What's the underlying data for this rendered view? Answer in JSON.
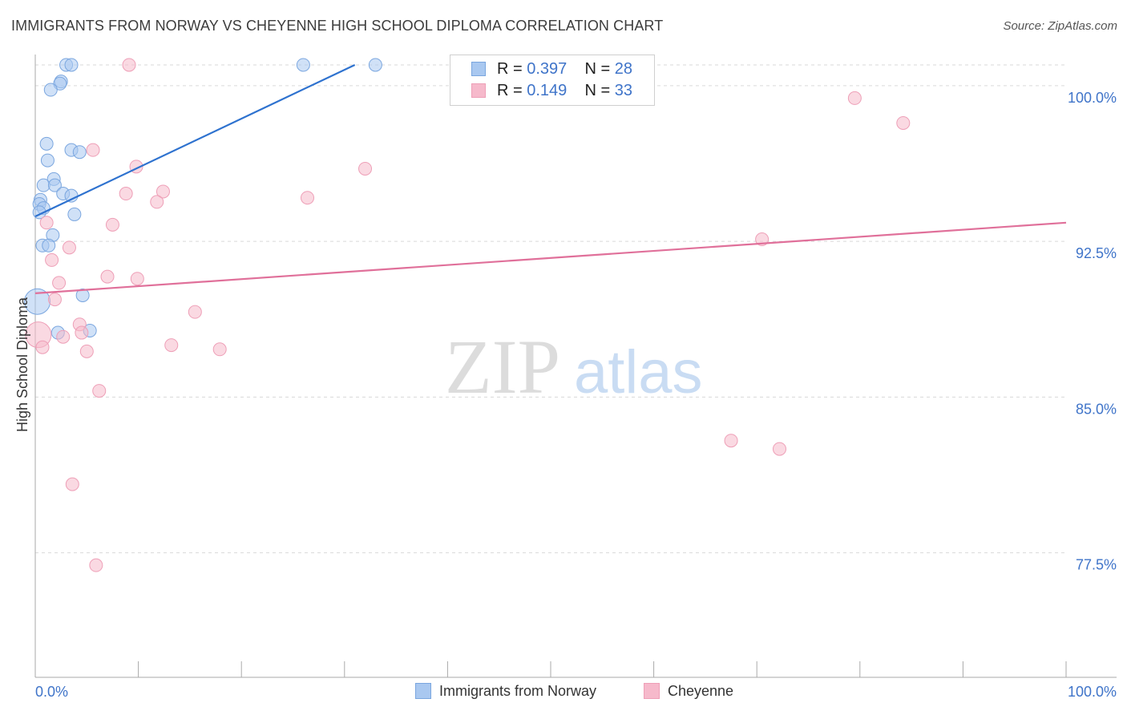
{
  "title": "IMMIGRANTS FROM NORWAY VS CHEYENNE HIGH SCHOOL DIPLOMA CORRELATION CHART",
  "source": "Source: ZipAtlas.com",
  "watermark": {
    "zip": "ZIP",
    "atlas": "atlas"
  },
  "legend": {
    "norway": {
      "r_label": "R =",
      "r_value": "0.397",
      "n_label": "N =",
      "n_value": "28"
    },
    "cheyenne": {
      "r_label": "R =",
      "r_value": "0.149",
      "n_label": "N =",
      "n_value": "33"
    }
  },
  "bottom_legend": {
    "norway": "Immigrants from Norway",
    "cheyenne": "Cheyenne"
  },
  "colors": {
    "norway_fill": "#a9c8f0",
    "norway_stroke": "#7aa6df",
    "norway_line": "#2e72cf",
    "cheyenne_fill": "#f6b9cb",
    "cheyenne_stroke": "#ee9fb7",
    "cheyenne_line": "#e0709a",
    "tick_text": "#3f74c9",
    "grid": "#d9d9d9"
  },
  "chart_data": {
    "type": "scatter",
    "title": "IMMIGRANTS FROM NORWAY VS CHEYENNE HIGH SCHOOL DIPLOMA CORRELATION CHART",
    "xlabel": "",
    "ylabel": "High School Diploma",
    "xlim": [
      0,
      100
    ],
    "ylim": [
      71.5,
      101.5
    ],
    "y_ticks": [
      77.5,
      85.0,
      92.5,
      100.0
    ],
    "y_tick_labels": [
      "77.5%",
      "85.0%",
      "92.5%",
      "100.0%"
    ],
    "x_tick_labels": [
      "0.0%",
      "100.0%"
    ],
    "grid": true,
    "legend_position": "top-center",
    "series": [
      {
        "name": "Immigrants from Norway",
        "r": 0.397,
        "n": 28,
        "trend": {
          "x": [
            0,
            31
          ],
          "y": [
            93.7,
            101.0
          ]
        },
        "points": [
          {
            "x": 3.0,
            "y": 101.0
          },
          {
            "x": 3.5,
            "y": 101.0
          },
          {
            "x": 26.0,
            "y": 101.0
          },
          {
            "x": 33.0,
            "y": 101.0
          },
          {
            "x": 2.5,
            "y": 100.2
          },
          {
            "x": 2.4,
            "y": 100.1
          },
          {
            "x": 1.5,
            "y": 99.8
          },
          {
            "x": 1.1,
            "y": 97.2
          },
          {
            "x": 1.2,
            "y": 96.4
          },
          {
            "x": 3.5,
            "y": 96.9
          },
          {
            "x": 4.3,
            "y": 96.8
          },
          {
            "x": 1.8,
            "y": 95.5
          },
          {
            "x": 0.8,
            "y": 95.2
          },
          {
            "x": 1.9,
            "y": 95.2
          },
          {
            "x": 2.7,
            "y": 94.8
          },
          {
            "x": 3.5,
            "y": 94.7
          },
          {
            "x": 0.5,
            "y": 94.5
          },
          {
            "x": 0.4,
            "y": 94.3
          },
          {
            "x": 0.8,
            "y": 94.1
          },
          {
            "x": 0.4,
            "y": 93.9
          },
          {
            "x": 3.8,
            "y": 93.8
          },
          {
            "x": 1.7,
            "y": 92.8
          },
          {
            "x": 0.7,
            "y": 92.3
          },
          {
            "x": 1.3,
            "y": 92.3
          },
          {
            "x": 0.2,
            "y": 89.6,
            "size": "large"
          },
          {
            "x": 4.6,
            "y": 89.9
          },
          {
            "x": 2.2,
            "y": 88.1
          },
          {
            "x": 5.3,
            "y": 88.2
          }
        ]
      },
      {
        "name": "Cheyenne",
        "r": 0.149,
        "n": 33,
        "trend": {
          "x": [
            0,
            100
          ],
          "y": [
            90.0,
            93.4
          ]
        },
        "points": [
          {
            "x": 9.1,
            "y": 101.0
          },
          {
            "x": 79.5,
            "y": 99.4
          },
          {
            "x": 84.2,
            "y": 98.2
          },
          {
            "x": 5.6,
            "y": 96.9
          },
          {
            "x": 9.8,
            "y": 96.1
          },
          {
            "x": 32.0,
            "y": 96.0
          },
          {
            "x": 8.8,
            "y": 94.8
          },
          {
            "x": 12.4,
            "y": 94.9
          },
          {
            "x": 26.4,
            "y": 94.6
          },
          {
            "x": 11.8,
            "y": 94.4
          },
          {
            "x": 1.1,
            "y": 93.4
          },
          {
            "x": 7.5,
            "y": 93.3
          },
          {
            "x": 70.5,
            "y": 92.6
          },
          {
            "x": 3.3,
            "y": 92.2
          },
          {
            "x": 1.6,
            "y": 91.6
          },
          {
            "x": 7.0,
            "y": 90.8
          },
          {
            "x": 9.9,
            "y": 90.7
          },
          {
            "x": 2.3,
            "y": 90.5
          },
          {
            "x": 1.9,
            "y": 89.7
          },
          {
            "x": 15.5,
            "y": 89.1
          },
          {
            "x": 4.3,
            "y": 88.5
          },
          {
            "x": 0.3,
            "y": 88.0,
            "size": "large"
          },
          {
            "x": 4.5,
            "y": 88.1
          },
          {
            "x": 2.7,
            "y": 87.9
          },
          {
            "x": 13.2,
            "y": 87.5
          },
          {
            "x": 17.9,
            "y": 87.3
          },
          {
            "x": 5.0,
            "y": 87.2
          },
          {
            "x": 0.7,
            "y": 87.4
          },
          {
            "x": 6.2,
            "y": 85.3
          },
          {
            "x": 67.5,
            "y": 82.9
          },
          {
            "x": 72.2,
            "y": 82.5
          },
          {
            "x": 3.6,
            "y": 80.8
          },
          {
            "x": 5.9,
            "y": 76.9
          }
        ]
      }
    ]
  }
}
